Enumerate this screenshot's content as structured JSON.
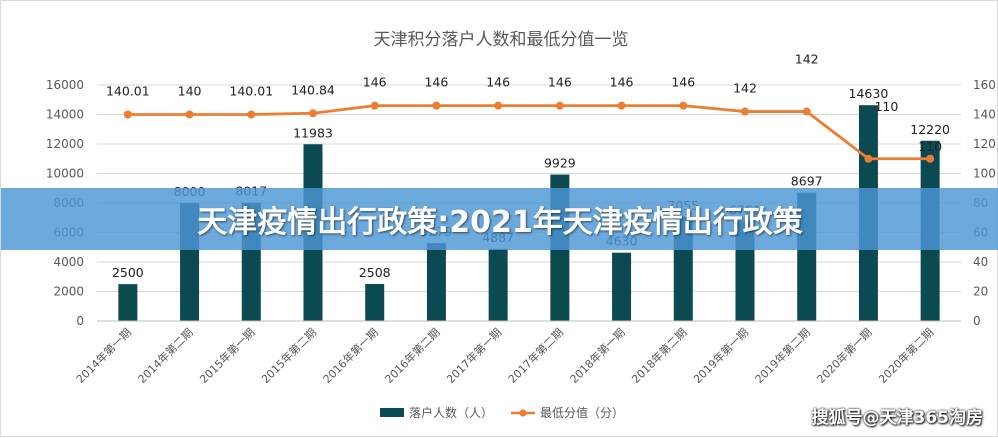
{
  "chart_data": {
    "type": "bar+line",
    "title": "天津积分落户人数和最低分值一览",
    "categories": [
      "2014年第一期",
      "2014年第二期",
      "2015年第一期",
      "2015年第二期",
      "2016年第一期",
      "2016年第二期",
      "2017年第一期",
      "2017年第二期",
      "2018年第一期",
      "2018年第二期",
      "2019年第一期",
      "2019年第二期",
      "2020年第一期",
      "2020年第二期"
    ],
    "series": [
      {
        "name": "落户人数（人）",
        "kind": "bar",
        "axis": "left",
        "color": "#0b4a50",
        "values": [
          2500,
          8000,
          8017,
          11983,
          2508,
          5279,
          4887,
          9929,
          4630,
          7055,
          6751,
          8697,
          14630,
          12220
        ],
        "labels": [
          "2500",
          "8000",
          "8017",
          "11983",
          "2508",
          "5279",
          "4887",
          "9929",
          "4630",
          "7055",
          "6751",
          "8697",
          "14630",
          "12220"
        ]
      },
      {
        "name": "最低分值（分）",
        "kind": "line",
        "axis": "right",
        "color": "#ed7d31",
        "values": [
          140.01,
          140,
          140.01,
          140.84,
          146,
          146,
          146,
          146,
          146,
          146,
          142,
          142,
          110,
          110
        ],
        "labels": [
          "140.01",
          "140",
          "140.01",
          "140.84",
          "146",
          "146",
          "146",
          "146",
          "146",
          "146",
          "142",
          "142",
          "110",
          "110"
        ]
      }
    ],
    "y_left": {
      "min": 0,
      "max": 16000,
      "ticks": [
        0,
        2000,
        4000,
        6000,
        8000,
        10000,
        12000,
        14000,
        16000
      ]
    },
    "y_right": {
      "min": 0,
      "max": 160,
      "ticks": [
        0,
        20,
        40,
        60,
        80,
        100,
        120,
        140,
        160
      ]
    },
    "grid": true,
    "legend_position": "bottom"
  },
  "overlay": {
    "headline": "天津疫情出行政策:2021年天津疫情出行政策",
    "watermark": "搜狐号@天津365淘房"
  }
}
